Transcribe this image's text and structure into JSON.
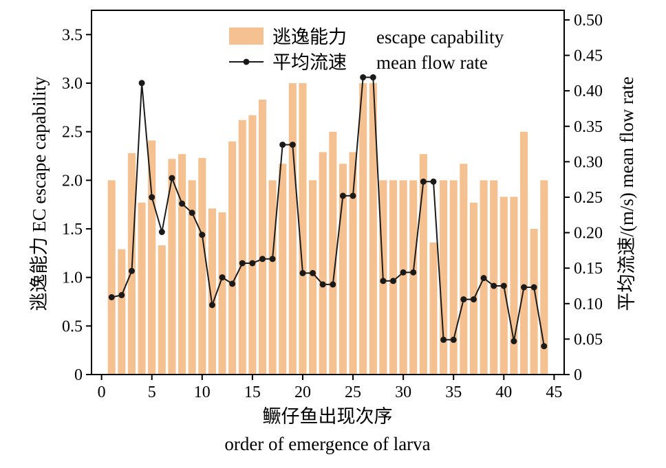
{
  "chart_data": {
    "type": "bar+line",
    "xlabel_cn": "鳜仔鱼出现次序",
    "xlabel_en": "order of emergence of larva",
    "ylabel_left": "逃逸能力 EC escape capability",
    "ylabel_right": "平均流速/(m/s) mean flow rate",
    "xlim": [
      -1,
      46
    ],
    "x_ticks": [
      "0",
      "5",
      "10",
      "15",
      "20",
      "25",
      "30",
      "35",
      "40",
      "45"
    ],
    "x_tick_values": [
      0,
      5,
      10,
      15,
      20,
      25,
      30,
      35,
      40,
      45
    ],
    "ylim_left": [
      0,
      3.75
    ],
    "y_left_ticks": [
      "0",
      "0.5",
      "1.0",
      "1.5",
      "2.0",
      "2.5",
      "3.0",
      "3.5"
    ],
    "y_left_tick_values": [
      0,
      0.5,
      1.0,
      1.5,
      2.0,
      2.5,
      3.0,
      3.5
    ],
    "ylim_right": [
      0,
      0.5135
    ],
    "y_right_ticks": [
      "0",
      "0.05",
      "0.10",
      "0.15",
      "0.20",
      "0.25",
      "0.30",
      "0.35",
      "0.40",
      "0.45",
      "0.50"
    ],
    "y_right_tick_values": [
      0,
      0.05,
      0.1,
      0.15,
      0.2,
      0.25,
      0.3,
      0.35,
      0.4,
      0.45,
      0.5
    ],
    "legend": {
      "position": "top-right",
      "bar_label_cn": "逃逸能力",
      "bar_label_en": "escape capability",
      "line_label_cn": "平均流速",
      "line_label_en": "mean flow rate"
    },
    "bar_color": "#f5c190",
    "line_color": "#1a1a1a",
    "series": [
      {
        "name": "逃逸能力 escape capability",
        "axis": "left",
        "kind": "bar",
        "x": [
          1,
          2,
          3,
          4,
          5,
          6,
          7,
          8,
          9,
          10,
          11,
          12,
          13,
          14,
          15,
          16,
          17,
          18,
          19,
          20,
          21,
          22,
          23,
          24,
          25,
          26,
          27,
          28,
          29,
          30,
          31,
          32,
          33,
          34,
          35,
          36,
          37,
          38,
          39,
          40,
          41,
          42,
          43,
          44
        ],
        "values": [
          2.0,
          1.29,
          2.28,
          1.77,
          2.41,
          1.33,
          2.22,
          2.27,
          2.0,
          2.23,
          1.71,
          1.67,
          2.4,
          2.62,
          2.67,
          2.83,
          2.0,
          2.17,
          3.0,
          3.0,
          2.0,
          2.29,
          2.5,
          2.17,
          2.29,
          3.0,
          3.0,
          2.0,
          2.0,
          2.0,
          2.0,
          2.27,
          1.36,
          2.0,
          2.0,
          2.17,
          1.77,
          2.0,
          2.0,
          1.83,
          1.83,
          2.5,
          1.5,
          2.0
        ]
      },
      {
        "name": "平均流速 mean flow rate",
        "axis": "right",
        "kind": "line",
        "x": [
          1,
          2,
          3,
          4,
          5,
          6,
          7,
          8,
          9,
          10,
          11,
          12,
          13,
          14,
          15,
          16,
          17,
          18,
          19,
          20,
          21,
          22,
          23,
          24,
          25,
          26,
          27,
          28,
          29,
          30,
          31,
          32,
          33,
          34,
          35,
          36,
          37,
          38,
          39,
          40,
          41,
          42,
          43,
          44
        ],
        "values": [
          0.109,
          0.112,
          0.146,
          0.411,
          0.25,
          0.201,
          0.277,
          0.241,
          0.228,
          0.197,
          0.098,
          0.137,
          0.128,
          0.157,
          0.157,
          0.163,
          0.163,
          0.324,
          0.324,
          0.143,
          0.143,
          0.127,
          0.127,
          0.252,
          0.252,
          0.419,
          0.419,
          0.132,
          0.132,
          0.144,
          0.144,
          0.272,
          0.272,
          0.049,
          0.049,
          0.106,
          0.106,
          0.136,
          0.125,
          0.125,
          0.047,
          0.123,
          0.123,
          0.04
        ]
      }
    ]
  }
}
